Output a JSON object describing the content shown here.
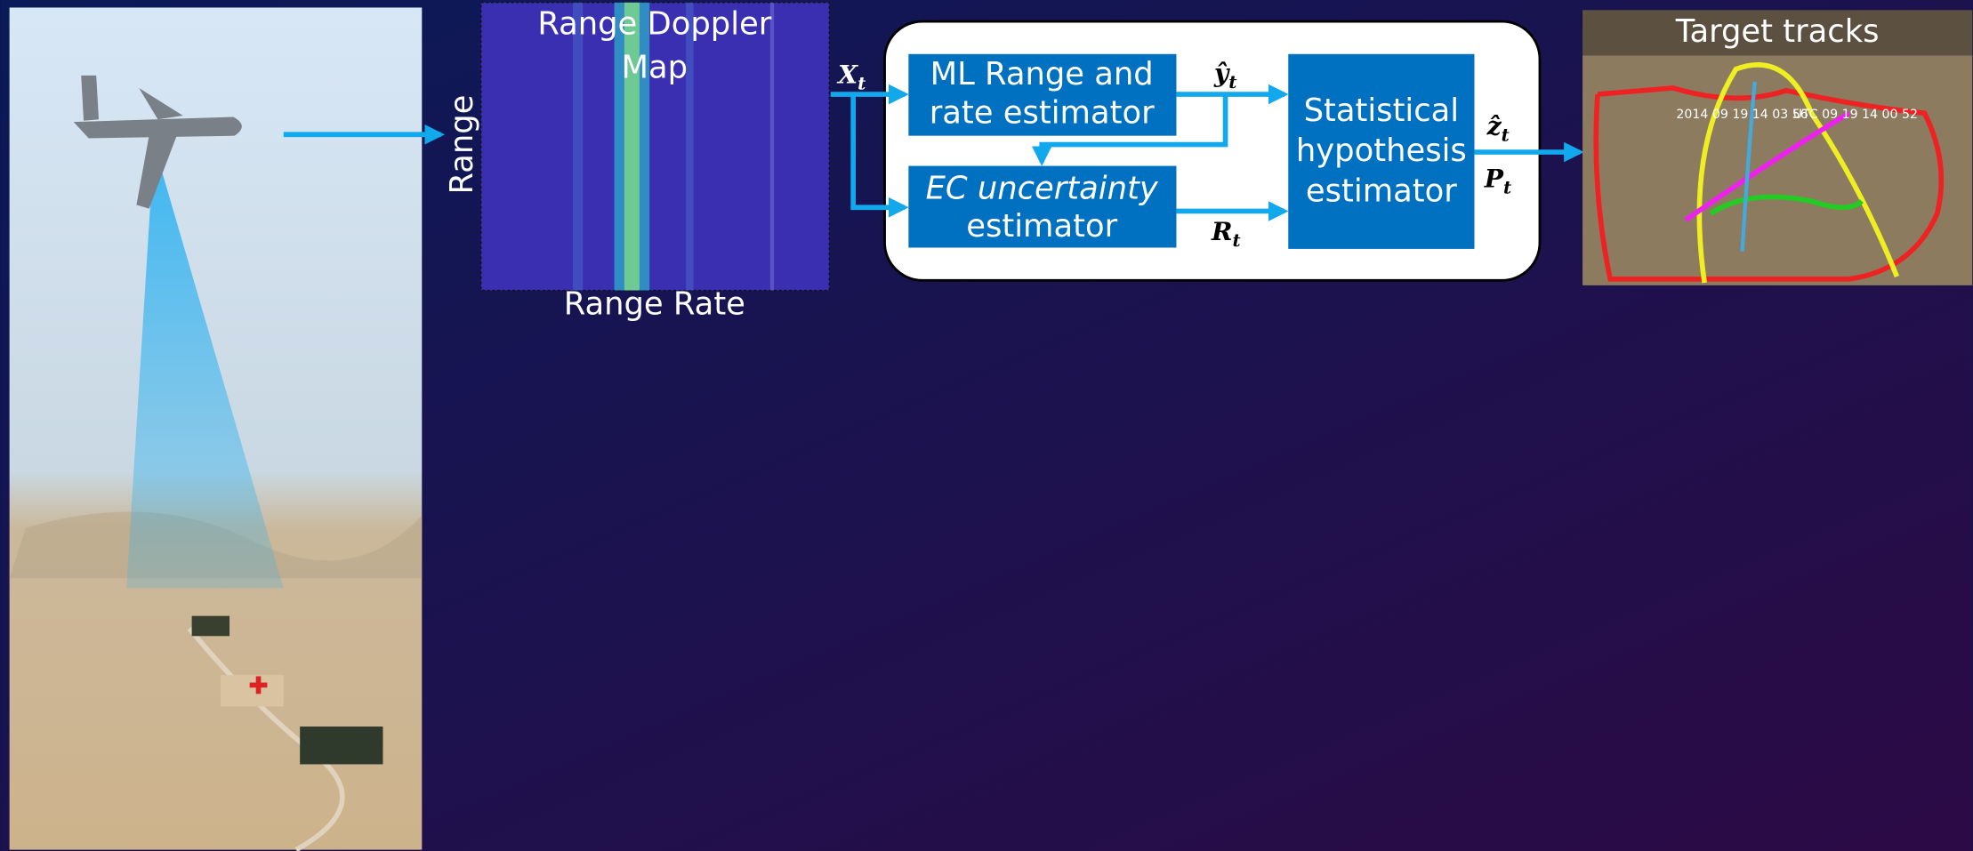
{
  "range_doppler": {
    "title_lines": [
      "Range Doppler",
      "Map"
    ],
    "y_label": "Range",
    "x_label": "Range Rate"
  },
  "signals": {
    "input": {
      "symbol": "X",
      "subscript": "t"
    },
    "estimate": {
      "symbol": "ŷ",
      "subscript": "t"
    },
    "uncertainty": {
      "symbol": "R",
      "subscript": "t"
    },
    "state": {
      "symbol": "ẑ",
      "subscript": "t"
    },
    "covariance": {
      "symbol": "P",
      "subscript": "t"
    }
  },
  "blocks": {
    "ml": [
      "ML Range and",
      "rate estimator"
    ],
    "ec": [
      "EC uncertainty",
      "estimator"
    ],
    "stat": [
      "Statistical",
      "hypothesis",
      "estimator"
    ]
  },
  "target_tracks": {
    "title": "Target tracks",
    "timestamps": [
      "2014 09 19 14 03 56",
      "UTC 09 19 14 00 52"
    ]
  }
}
